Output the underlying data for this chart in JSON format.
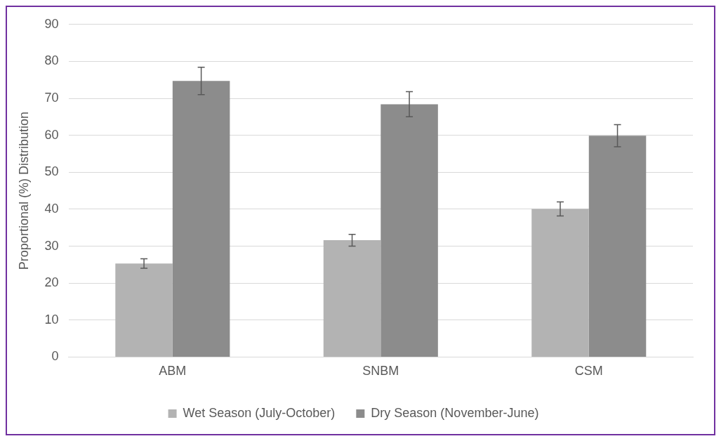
{
  "chart_data": {
    "type": "bar",
    "ylabel": "Proportional (%) Distribution",
    "categories": [
      "ABM",
      "SNBM",
      "CSM"
    ],
    "series": [
      {
        "name": "Wet Season (July-October)",
        "color": "#b3b3b3",
        "values": [
          25.3,
          31.6,
          40.1
        ],
        "errors": [
          1.3,
          1.6,
          1.9
        ]
      },
      {
        "name": "Dry Season (November-June)",
        "color": "#8c8c8c",
        "values": [
          74.7,
          68.4,
          59.9
        ],
        "errors": [
          3.7,
          3.4,
          3.0
        ]
      }
    ],
    "ylim": [
      0,
      90
    ],
    "yticks": [
      0,
      10,
      20,
      30,
      40,
      50,
      60,
      70,
      80,
      90
    ],
    "grid": "y",
    "legend": "bottom"
  }
}
